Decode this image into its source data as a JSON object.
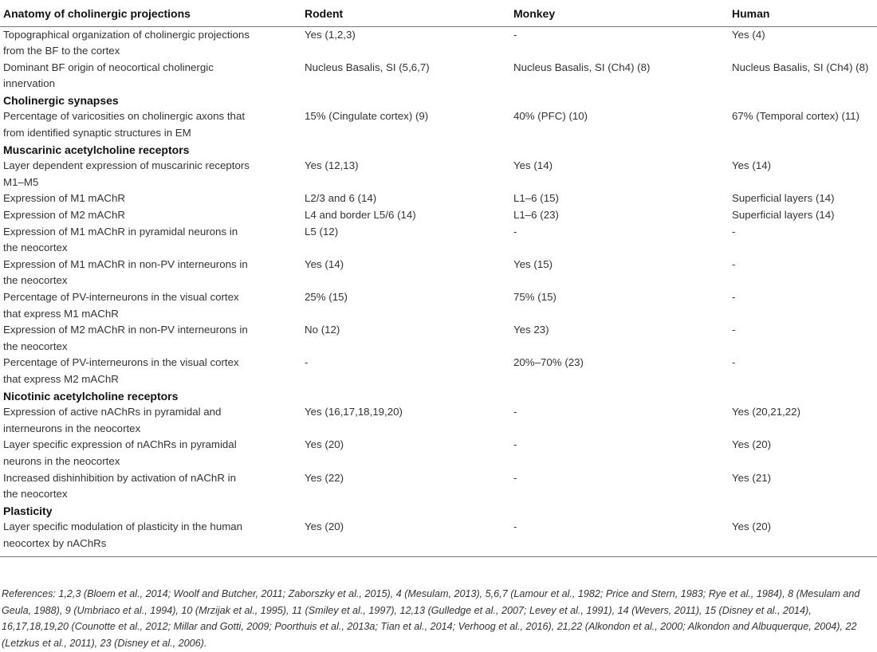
{
  "table": {
    "headers": [
      "Anatomy of cholinergic projections",
      "Rodent",
      "Monkey",
      "Human"
    ],
    "rows": [
      {
        "type": "data",
        "cells": [
          "Topographical organization of cholinergic projections from the BF to the cortex",
          "Yes (1,2,3)",
          "-",
          "Yes (4)"
        ]
      },
      {
        "type": "data",
        "cells": [
          "Dominant BF origin of neocortical cholinergic innervation",
          "Nucleus Basalis, SI (5,6,7)",
          "Nucleus Basalis, SI (Ch4) (8)",
          "Nucleus Basalis, SI (Ch4) (8)"
        ]
      },
      {
        "type": "section",
        "cells": [
          "Cholinergic synapses"
        ]
      },
      {
        "type": "data",
        "cells": [
          "Percentage of varicosities on cholinergic axons that from identified synaptic structures in EM",
          "15% (Cingulate cortex) (9)",
          "40% (PFC) (10)",
          "67% (Temporal cortex) (11)"
        ]
      },
      {
        "type": "section",
        "cells": [
          "Muscarinic acetylcholine receptors"
        ]
      },
      {
        "type": "data",
        "cells": [
          "Layer dependent expression of muscarinic receptors M1–M5",
          "Yes (12,13)",
          "Yes (14)",
          "Yes (14)"
        ]
      },
      {
        "type": "data",
        "cells": [
          "Expression of M1 mAChR",
          "L2/3 and 6 (14)",
          "L1–6 (15)",
          "Superficial layers (14)"
        ]
      },
      {
        "type": "data",
        "cells": [
          "Expression of M2 mAChR",
          "L4 and border L5/6 (14)",
          "L1–6 (23)",
          "Superficial layers (14)"
        ]
      },
      {
        "type": "data",
        "cells": [
          "Expression of M1 mAChR in pyramidal neurons in the neocortex",
          "L5 (12)",
          "-",
          "-"
        ]
      },
      {
        "type": "data",
        "cells": [
          "Expression of M1 mAChR in non-PV interneurons in the neocortex",
          "Yes (14)",
          "Yes (15)",
          "-"
        ]
      },
      {
        "type": "data",
        "cells": [
          "Percentage of PV-interneurons in the visual cortex that express M1 mAChR",
          "25% (15)",
          "75% (15)",
          "-"
        ]
      },
      {
        "type": "data",
        "cells": [
          "Expression of M2 mAChR in non-PV interneurons in the neocortex",
          "No (12)",
          "Yes 23)",
          "-"
        ]
      },
      {
        "type": "data",
        "cells": [
          "Percentage of PV-interneurons in the visual cortex that express M2 mAChR",
          "-",
          "20%–70% (23)",
          "-"
        ]
      },
      {
        "type": "section",
        "cells": [
          "Nicotinic acetylcholine receptors"
        ]
      },
      {
        "type": "data",
        "cells": [
          "Expression of active nAChRs in pyramidal and interneurons in the neocortex",
          "Yes (16,17,18,19,20)",
          "-",
          "Yes (20,21,22)"
        ]
      },
      {
        "type": "data",
        "cells": [
          "Layer specific expression of nAChRs in pyramidal neurons in the neocortex",
          "Yes (20)",
          "-",
          "Yes (20)"
        ]
      },
      {
        "type": "data",
        "cells": [
          "Increased dishinhibition by activation of nAChR in the neocortex",
          "Yes (22)",
          "-",
          "Yes (21)"
        ]
      },
      {
        "type": "section",
        "cells": [
          "Plasticity"
        ]
      },
      {
        "type": "data",
        "cells": [
          "Layer specific modulation of plasticity in the human neocortex by nAChRs",
          "Yes (20)",
          "-",
          "Yes (20)"
        ]
      }
    ]
  },
  "references": "References: 1,2,3 (Bloem et al., 2014; Woolf and Butcher, 2011; Zaborszky et al., 2015), 4 (Mesulam, 2013), 5,6,7 (Lamour et al., 1982; Price and Stern, 1983; Rye et al., 1984), 8 (Mesulam and Geula, 1988), 9 (Umbriaco et al., 1994), 10 (Mrzijak et al., 1995), 11 (Smiley et al., 1997), 12,13 (Gulledge et al., 2007; Levey et al., 1991), 14 (Wevers, 2011), 15 (Disney et al., 2014), 16,17,18,19,20 (Counotte et al., 2012; Millar and Gotti, 2009; Poorthuis et al., 2013a; Tian et al., 2014; Verhoog et al., 2016), 21,22 (Alkondon et al., 2000; Alkondon and Albuquerque, 2004), 22 (Letzkus et al., 2011), 23 (Disney et al., 2006)."
}
